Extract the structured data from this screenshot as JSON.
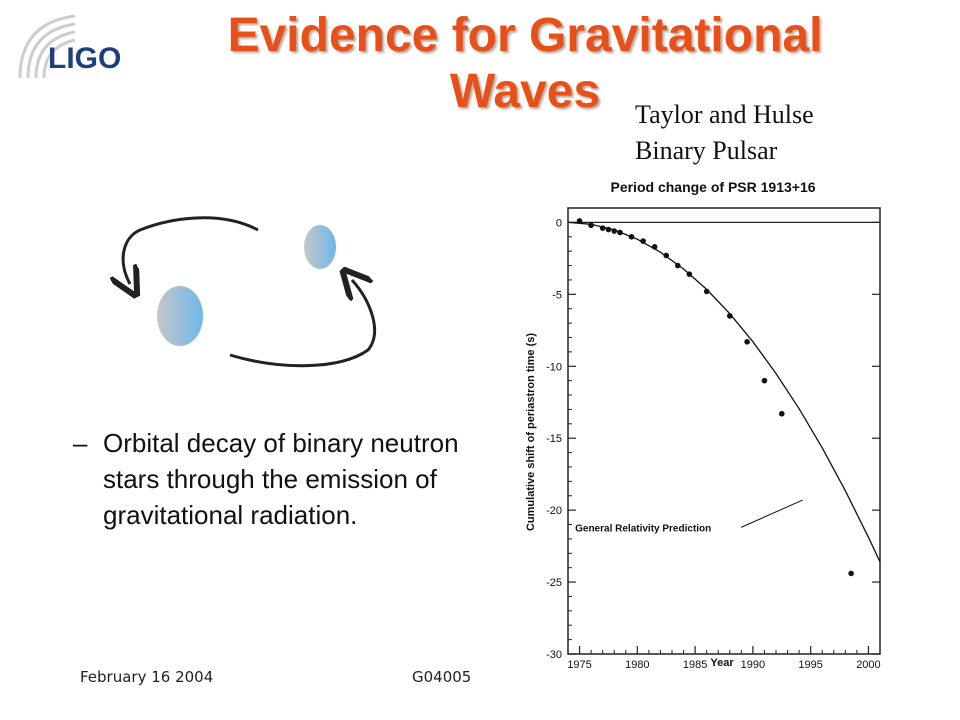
{
  "logo": {
    "text": "LIGO"
  },
  "title": {
    "line1": "Evidence for Gravitational",
    "line2": "Waves"
  },
  "caption": {
    "line1": "Taylor and Hulse",
    "line2": "Binary Pulsar"
  },
  "bullet": {
    "dash": "–",
    "text": "Orbital decay of binary neutron stars through the emission of gravitational radiation."
  },
  "footer": {
    "date": "February 16 2004",
    "doc_id": "G04005"
  },
  "colors": {
    "title": "#e8501a",
    "star_light": "#c7c7c7",
    "star_blue": "#6db7ea",
    "logo_blue": "#1d3f7a"
  },
  "chart_data": {
    "type": "scatter",
    "title": "Period change of PSR 1913+16",
    "xlabel": "Year",
    "ylabel": "Cumulative shift of periastron time (s)",
    "xlim": [
      1974,
      2001
    ],
    "ylim": [
      -30,
      1
    ],
    "xticks": [
      1975,
      1980,
      1985,
      1990,
      1995,
      2000
    ],
    "yticks": [
      0,
      -5,
      -10,
      -15,
      -20,
      -25,
      -30
    ],
    "curve_label": "General Relativity Prediction",
    "reference_line": 0,
    "points": [
      {
        "x": 1975.0,
        "y": 0.1
      },
      {
        "x": 1976.0,
        "y": -0.2
      },
      {
        "x": 1977.0,
        "y": -0.4
      },
      {
        "x": 1977.5,
        "y": -0.5
      },
      {
        "x": 1978.0,
        "y": -0.6
      },
      {
        "x": 1978.5,
        "y": -0.7
      },
      {
        "x": 1979.5,
        "y": -1.0
      },
      {
        "x": 1980.5,
        "y": -1.3
      },
      {
        "x": 1981.5,
        "y": -1.7
      },
      {
        "x": 1982.5,
        "y": -2.3
      },
      {
        "x": 1983.5,
        "y": -3.0
      },
      {
        "x": 1984.5,
        "y": -3.6
      },
      {
        "x": 1986.0,
        "y": -4.8
      },
      {
        "x": 1988.0,
        "y": -6.5
      },
      {
        "x": 1989.5,
        "y": -8.3
      },
      {
        "x": 1991.0,
        "y": -11.0
      },
      {
        "x": 1992.5,
        "y": -13.3
      },
      {
        "x": 1998.5,
        "y": -24.4
      }
    ],
    "prediction_curve": [
      {
        "x": 1974,
        "y": 0
      },
      {
        "x": 1976,
        "y": -0.13
      },
      {
        "x": 1978,
        "y": -0.52
      },
      {
        "x": 1980,
        "y": -1.17
      },
      {
        "x": 1982,
        "y": -2.07
      },
      {
        "x": 1984,
        "y": -3.24
      },
      {
        "x": 1986,
        "y": -4.66
      },
      {
        "x": 1988,
        "y": -6.35
      },
      {
        "x": 1990,
        "y": -8.29
      },
      {
        "x": 1992,
        "y": -10.5
      },
      {
        "x": 1994,
        "y": -12.95
      },
      {
        "x": 1996,
        "y": -15.67
      },
      {
        "x": 1998,
        "y": -18.65
      },
      {
        "x": 2000,
        "y": -21.88
      },
      {
        "x": 2001,
        "y": -23.6
      }
    ]
  }
}
